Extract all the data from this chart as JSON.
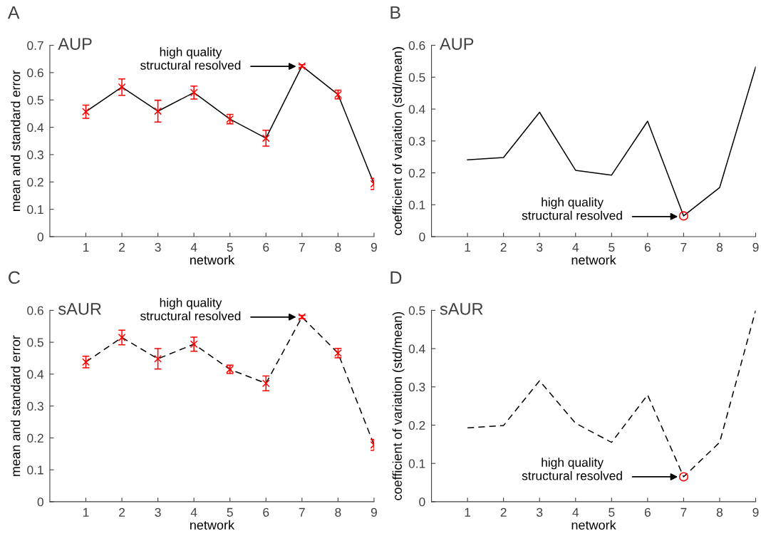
{
  "chart_data": [
    {
      "type": "line",
      "title": "A",
      "subtitle": "AUP",
      "xlabel": "network",
      "ylabel": "mean and standard error",
      "x": [
        1,
        2,
        3,
        4,
        5,
        6,
        7,
        8,
        9
      ],
      "xlim": [
        0,
        9
      ],
      "xticks": [
        1,
        2,
        3,
        4,
        5,
        6,
        7,
        8,
        9
      ],
      "ylim": [
        0,
        0.7
      ],
      "yticks": [
        0,
        0.1,
        0.2,
        0.3,
        0.4,
        0.5,
        0.6,
        0.7
      ],
      "grid": false,
      "line_style": "solid",
      "series": [
        {
          "color": "#000000",
          "marker": "none",
          "values": [
            0.457,
            0.547,
            0.459,
            0.527,
            0.43,
            0.36,
            0.624,
            0.52,
            0.193
          ]
        },
        {
          "type": "scatter",
          "color": "#ff0000",
          "marker": "cross",
          "values": [
            0.457,
            0.547,
            0.459,
            0.527,
            0.43,
            0.36,
            0.624,
            0.52,
            0.193
          ],
          "errors": [
            0.024,
            0.03,
            0.04,
            0.024,
            0.017,
            0.029,
            0.005,
            0.016,
            0.02
          ]
        }
      ],
      "annotations": [
        "high quality\nstructural resolved"
      ]
    },
    {
      "type": "line",
      "title": "B",
      "subtitle": "AUP",
      "xlabel": "network",
      "ylabel": "coefficient of variation (std/mean)",
      "x": [
        1,
        2,
        3,
        4,
        5,
        6,
        7,
        8,
        9
      ],
      "xlim": [
        0,
        9
      ],
      "xticks": [
        1,
        2,
        3,
        4,
        5,
        6,
        7,
        8,
        9
      ],
      "ylim": [
        0,
        0.6
      ],
      "yticks": [
        0,
        0.1,
        0.2,
        0.3,
        0.4,
        0.5,
        0.6
      ],
      "grid": false,
      "line_style": "solid",
      "series": [
        {
          "color": "#000000",
          "marker": "none",
          "values": [
            0.241,
            0.248,
            0.39,
            0.208,
            0.193,
            0.362,
            0.065,
            0.154,
            0.532
          ]
        },
        {
          "type": "scatter",
          "color": "#ff0000",
          "marker": "circle",
          "x": [
            7
          ],
          "values": [
            0.065
          ]
        }
      ],
      "annotations": [
        "high quality\nstructural resolved"
      ]
    },
    {
      "type": "line",
      "title": "C",
      "subtitle": "sAUR",
      "xlabel": "network",
      "ylabel": "mean and standard error",
      "x": [
        1,
        2,
        3,
        4,
        5,
        6,
        7,
        8,
        9
      ],
      "xlim": [
        0,
        9
      ],
      "xticks": [
        1,
        2,
        3,
        4,
        5,
        6,
        7,
        8,
        9
      ],
      "ylim": [
        0,
        0.6
      ],
      "yticks": [
        0,
        0.1,
        0.2,
        0.3,
        0.4,
        0.5,
        0.6
      ],
      "grid": false,
      "line_style": "dashed",
      "series": [
        {
          "color": "#000000",
          "marker": "none",
          "values": [
            0.438,
            0.515,
            0.448,
            0.494,
            0.415,
            0.371,
            0.579,
            0.466,
            0.178
          ]
        },
        {
          "type": "scatter",
          "color": "#ff0000",
          "marker": "cross",
          "values": [
            0.438,
            0.515,
            0.448,
            0.494,
            0.415,
            0.371,
            0.579,
            0.466,
            0.178
          ],
          "errors": [
            0.018,
            0.023,
            0.032,
            0.022,
            0.013,
            0.023,
            0.005,
            0.015,
            0.017
          ]
        }
      ],
      "annotations": [
        "high quality\nstructural resolved"
      ]
    },
    {
      "type": "line",
      "title": "D",
      "subtitle": "sAUR",
      "xlabel": "network",
      "ylabel": "coefficient of variation (std/mean)",
      "x": [
        1,
        2,
        3,
        4,
        5,
        6,
        7,
        8,
        9
      ],
      "xlim": [
        0,
        9
      ],
      "xticks": [
        1,
        2,
        3,
        4,
        5,
        6,
        7,
        8,
        9
      ],
      "ylim": [
        0,
        0.5
      ],
      "yticks": [
        0,
        0.1,
        0.2,
        0.3,
        0.4,
        0.5
      ],
      "grid": false,
      "line_style": "dashed",
      "series": [
        {
          "color": "#000000",
          "marker": "none",
          "values": [
            0.193,
            0.199,
            0.316,
            0.205,
            0.155,
            0.279,
            0.065,
            0.155,
            0.5
          ]
        },
        {
          "type": "scatter",
          "color": "#ff0000",
          "marker": "circle",
          "x": [
            7
          ],
          "values": [
            0.065
          ]
        }
      ],
      "annotations": [
        "high quality\nstructural resolved"
      ]
    }
  ]
}
